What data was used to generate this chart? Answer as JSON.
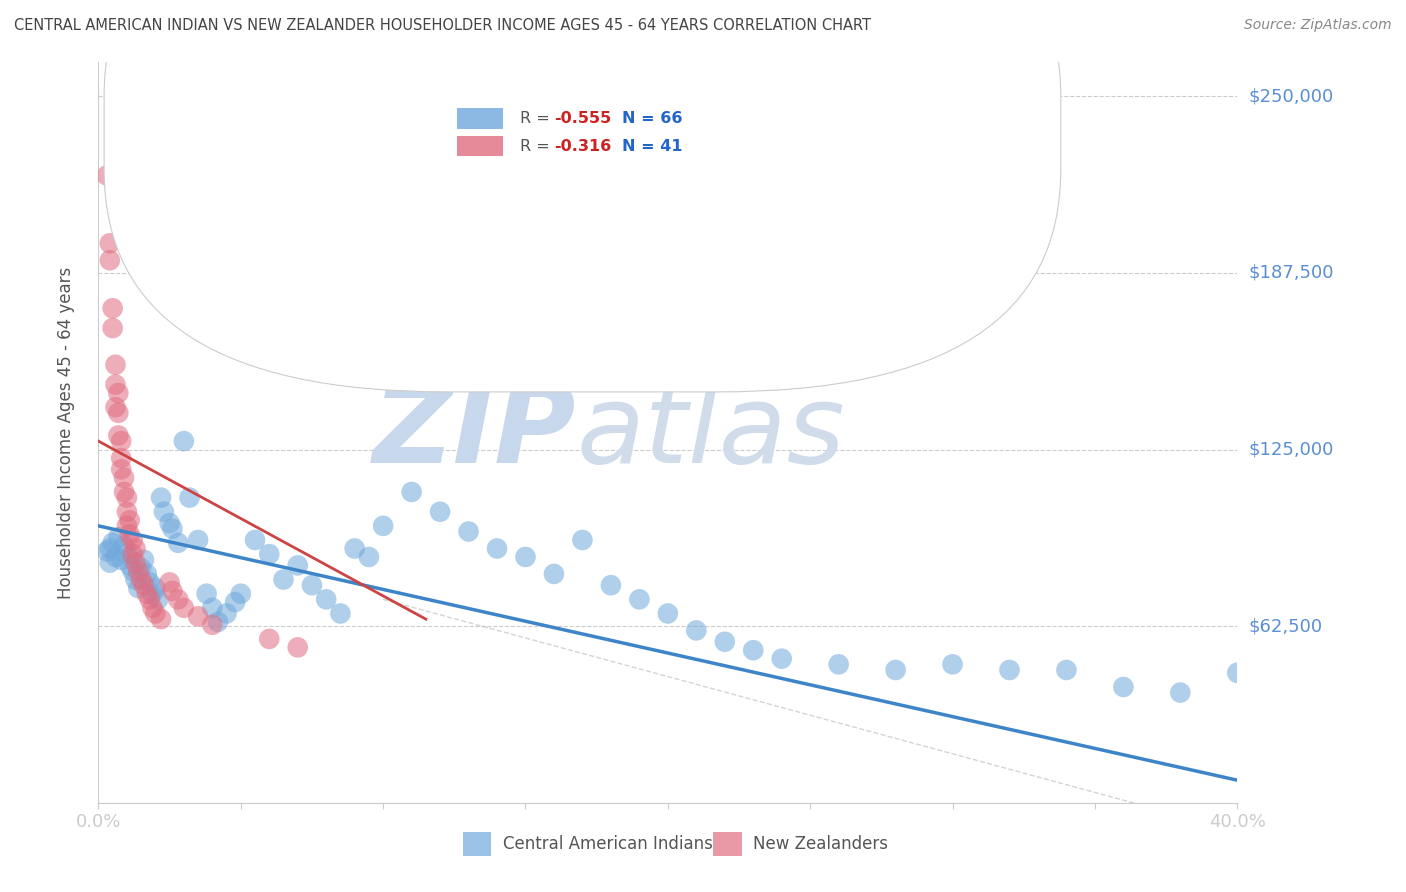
{
  "title": "CENTRAL AMERICAN INDIAN VS NEW ZEALANDER HOUSEHOLDER INCOME AGES 45 - 64 YEARS CORRELATION CHART",
  "source": "Source: ZipAtlas.com",
  "ylabel": "Householder Income Ages 45 - 64 years",
  "y_ticks": [
    0,
    62500,
    125000,
    187500,
    250000
  ],
  "y_tick_labels": [
    "",
    "$62,500",
    "$125,000",
    "$187,500",
    "$250,000"
  ],
  "x_min": 0.0,
  "x_max": 0.4,
  "y_min": 0,
  "y_max": 262000,
  "x_ticks": [
    0.0,
    0.05,
    0.1,
    0.15,
    0.2,
    0.25,
    0.3,
    0.35,
    0.4
  ],
  "x_tick_labels": [
    "0.0%",
    "",
    "",
    "",
    "",
    "",
    "",
    "",
    "40.0%"
  ],
  "watermark_zip": "ZIP",
  "watermark_atlas": "atlas",
  "blue_scatter": [
    [
      0.004,
      90000
    ],
    [
      0.005,
      92000
    ],
    [
      0.006,
      87000
    ],
    [
      0.007,
      94000
    ],
    [
      0.008,
      86000
    ],
    [
      0.009,
      91000
    ],
    [
      0.01,
      88000
    ],
    [
      0.011,
      84000
    ],
    [
      0.012,
      82000
    ],
    [
      0.013,
      79000
    ],
    [
      0.014,
      76000
    ],
    [
      0.015,
      83000
    ],
    [
      0.016,
      86000
    ],
    [
      0.017,
      81000
    ],
    [
      0.018,
      78000
    ],
    [
      0.019,
      74000
    ],
    [
      0.02,
      76000
    ],
    [
      0.021,
      72000
    ],
    [
      0.022,
      108000
    ],
    [
      0.023,
      103000
    ],
    [
      0.025,
      99000
    ],
    [
      0.026,
      97000
    ],
    [
      0.028,
      92000
    ],
    [
      0.03,
      128000
    ],
    [
      0.032,
      108000
    ],
    [
      0.035,
      93000
    ],
    [
      0.038,
      74000
    ],
    [
      0.04,
      69000
    ],
    [
      0.042,
      64000
    ],
    [
      0.045,
      67000
    ],
    [
      0.048,
      71000
    ],
    [
      0.05,
      74000
    ],
    [
      0.055,
      93000
    ],
    [
      0.06,
      88000
    ],
    [
      0.065,
      79000
    ],
    [
      0.07,
      84000
    ],
    [
      0.075,
      77000
    ],
    [
      0.08,
      72000
    ],
    [
      0.085,
      67000
    ],
    [
      0.09,
      90000
    ],
    [
      0.095,
      87000
    ],
    [
      0.1,
      98000
    ],
    [
      0.11,
      110000
    ],
    [
      0.12,
      103000
    ],
    [
      0.13,
      96000
    ],
    [
      0.14,
      90000
    ],
    [
      0.15,
      87000
    ],
    [
      0.16,
      81000
    ],
    [
      0.17,
      93000
    ],
    [
      0.18,
      77000
    ],
    [
      0.19,
      72000
    ],
    [
      0.2,
      67000
    ],
    [
      0.21,
      61000
    ],
    [
      0.22,
      57000
    ],
    [
      0.23,
      54000
    ],
    [
      0.24,
      51000
    ],
    [
      0.26,
      49000
    ],
    [
      0.28,
      47000
    ],
    [
      0.3,
      49000
    ],
    [
      0.32,
      47000
    ],
    [
      0.34,
      47000
    ],
    [
      0.36,
      41000
    ],
    [
      0.38,
      39000
    ],
    [
      0.4,
      46000
    ],
    [
      0.003,
      89000
    ],
    [
      0.004,
      85000
    ]
  ],
  "pink_scatter": [
    [
      0.003,
      222000
    ],
    [
      0.004,
      198000
    ],
    [
      0.004,
      192000
    ],
    [
      0.005,
      175000
    ],
    [
      0.005,
      168000
    ],
    [
      0.006,
      155000
    ],
    [
      0.006,
      148000
    ],
    [
      0.006,
      140000
    ],
    [
      0.007,
      145000
    ],
    [
      0.007,
      138000
    ],
    [
      0.007,
      130000
    ],
    [
      0.008,
      128000
    ],
    [
      0.008,
      122000
    ],
    [
      0.008,
      118000
    ],
    [
      0.009,
      115000
    ],
    [
      0.009,
      110000
    ],
    [
      0.01,
      108000
    ],
    [
      0.01,
      103000
    ],
    [
      0.01,
      98000
    ],
    [
      0.011,
      100000
    ],
    [
      0.011,
      95000
    ],
    [
      0.012,
      93000
    ],
    [
      0.012,
      88000
    ],
    [
      0.013,
      90000
    ],
    [
      0.013,
      85000
    ],
    [
      0.014,
      82000
    ],
    [
      0.015,
      79000
    ],
    [
      0.016,
      77000
    ],
    [
      0.017,
      74000
    ],
    [
      0.018,
      72000
    ],
    [
      0.019,
      69000
    ],
    [
      0.02,
      67000
    ],
    [
      0.022,
      65000
    ],
    [
      0.025,
      78000
    ],
    [
      0.026,
      75000
    ],
    [
      0.028,
      72000
    ],
    [
      0.03,
      69000
    ],
    [
      0.035,
      66000
    ],
    [
      0.04,
      63000
    ],
    [
      0.06,
      58000
    ],
    [
      0.07,
      55000
    ]
  ],
  "blue_line_x": [
    0.0,
    0.4
  ],
  "blue_line_y": [
    98000,
    8000
  ],
  "pink_line_x": [
    0.0,
    0.115
  ],
  "pink_line_y": [
    128000,
    65000
  ],
  "blue_color": "#6fa8dc",
  "pink_color": "#e06c80",
  "blue_line_color": "#3d85c8",
  "pink_line_color": "#cc4444",
  "background_color": "#ffffff",
  "grid_color": "#cccccc",
  "title_color": "#444444",
  "source_color": "#888888",
  "right_label_color": "#5b8fd4",
  "watermark_zip_color": "#c8d8ec",
  "watermark_atlas_color": "#d0dcea",
  "legend_blue_label_R": "R = ",
  "legend_blue_R_val": "-0.555",
  "legend_blue_N": "N = 66",
  "legend_pink_label_R": "R = ",
  "legend_pink_R_val": "-0.316",
  "legend_pink_N": "N = 41",
  "bottom_legend_blue": "Central American Indians",
  "bottom_legend_pink": "New Zealanders"
}
